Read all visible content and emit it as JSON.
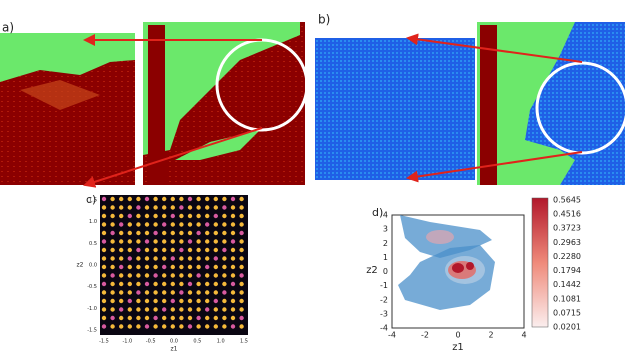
{
  "panels": {
    "a": {
      "label": "a)"
    },
    "b": {
      "label": "b)"
    },
    "c": {
      "label": "c)",
      "y_axis_label": "z2",
      "x_axis_label": "z1",
      "yticks": [
        "1.5",
        "1.0",
        "0.5",
        "0.0",
        "-0.5",
        "-1.0",
        "-1.5"
      ],
      "xticks": [
        "-1.5",
        "-1.0",
        "-0.5",
        "0.0",
        "0.5",
        "1.0",
        "1.5"
      ]
    },
    "d": {
      "label": "d)",
      "y_axis_label": "z2",
      "x_axis_label": "z1",
      "yticks": [
        "4",
        "3",
        "2",
        "1",
        "0",
        "-1",
        "-2",
        "-3",
        "-4"
      ],
      "xticks": [
        "-4",
        "-2",
        "0",
        "2",
        "4"
      ],
      "colorbar_ticks": [
        "0.5645",
        "0.4516",
        "0.3723",
        "0.2963",
        "0.2280",
        "0.1794",
        "0.1442",
        "0.1081",
        "0.0715",
        "0.0201"
      ]
    }
  }
}
